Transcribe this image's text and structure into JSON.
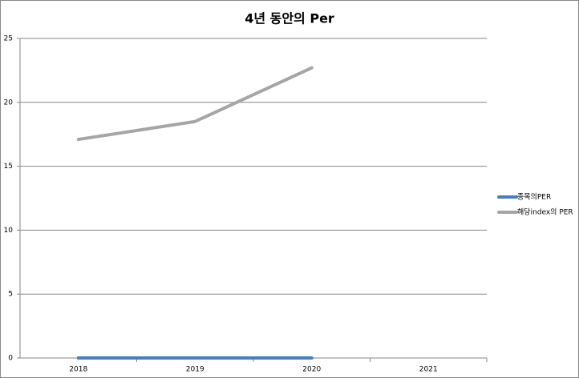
{
  "chart_data": {
    "type": "line",
    "title": "4년 동안의 Per",
    "categories": [
      "2018",
      "2019",
      "2020",
      "2021"
    ],
    "series": [
      {
        "name": "종목의PER",
        "color": "#4a7ebb",
        "values": [
          0,
          0,
          0,
          null
        ]
      },
      {
        "name": "해당index의 PER",
        "color": "#a5a5a5",
        "values": [
          17.1,
          18.5,
          22.7,
          null
        ]
      }
    ],
    "ylim": [
      0,
      25
    ],
    "yticks": [
      0,
      5,
      10,
      15,
      20,
      25
    ],
    "grid": true,
    "legend": "right"
  }
}
